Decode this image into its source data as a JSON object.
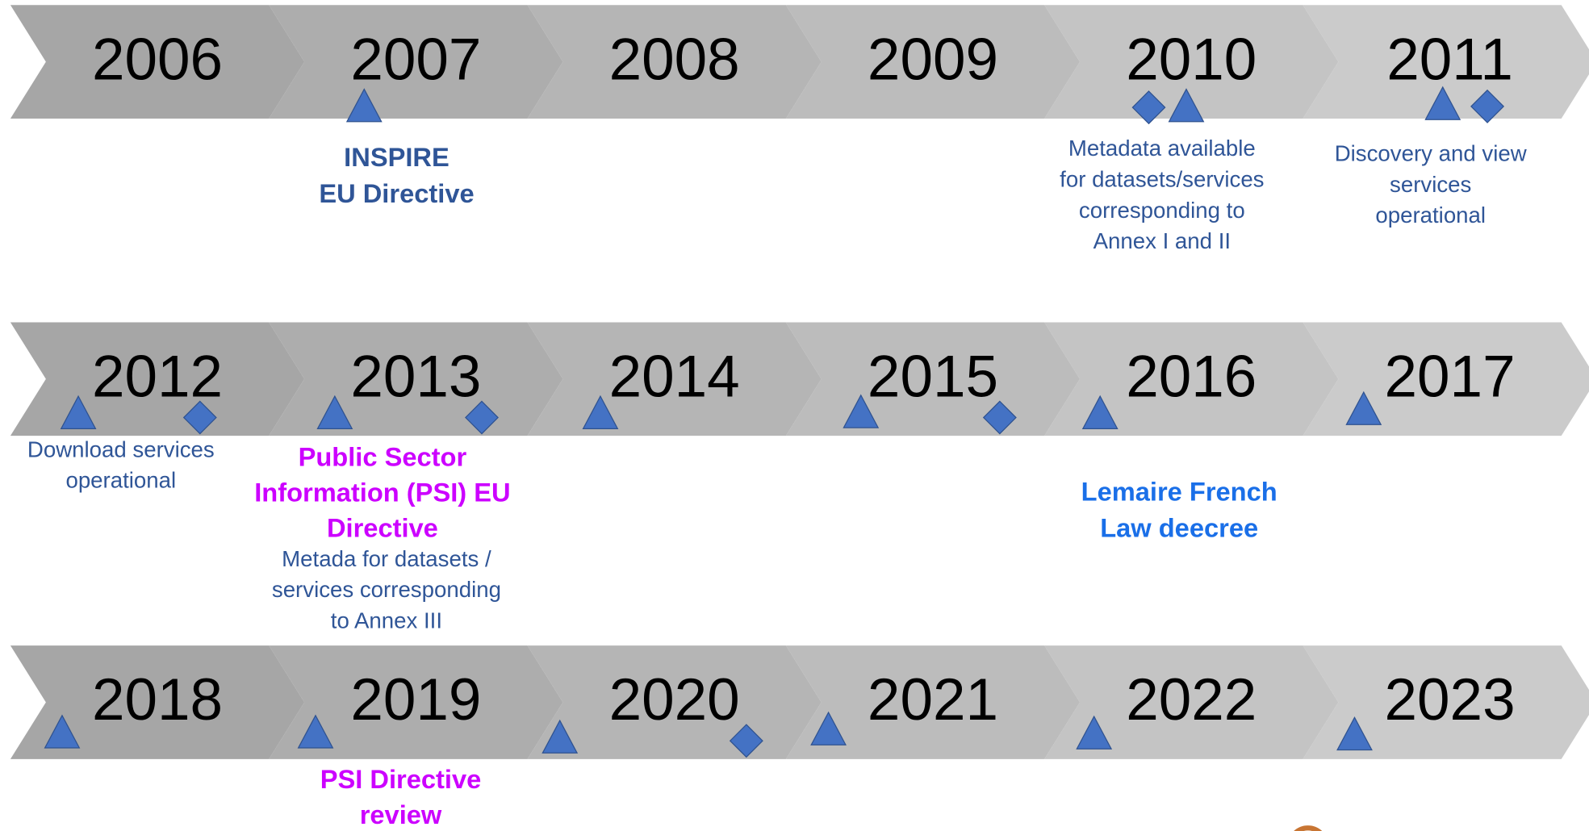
{
  "rows": [
    [
      "2006",
      "2007",
      "2008",
      "2009",
      "2010",
      "2011"
    ],
    [
      "2012",
      "2013",
      "2014",
      "2015",
      "2016",
      "2017"
    ],
    [
      "2018",
      "2019",
      "2020",
      "2021",
      "2022",
      "2023"
    ]
  ],
  "notes": [
    {
      "lines": [
        "INSPIRE",
        "EU Directive"
      ]
    },
    {
      "lines": [
        "Metadata available",
        "for datasets/services",
        "corresponding to",
        "Annex I and II"
      ]
    },
    {
      "lines": [
        "Discovery and view",
        "services",
        "operational"
      ]
    },
    {
      "lines": [
        "Download services",
        "operational"
      ]
    },
    {
      "lines": [
        "Public Sector",
        "Information (PSI) EU",
        "Directive"
      ]
    },
    {
      "lines": [
        "Metada for datasets /",
        "services corresponding",
        "to Annex III"
      ]
    },
    {
      "lines": [
        "Lemaire French",
        "Law deecree"
      ]
    },
    {
      "lines": [
        "PSI Directive",
        "review"
      ]
    }
  ]
}
